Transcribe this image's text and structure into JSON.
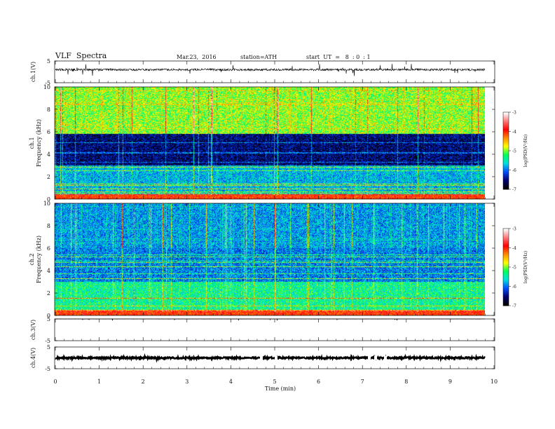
{
  "header": {
    "title": "VLF  Spectra",
    "date": "Mar.23,  2016",
    "station": "station=ATH",
    "start_ut": "start  UT  =   8  : 0  : 1"
  },
  "chart_data": [
    {
      "type": "line",
      "panel": "ch1-waveform",
      "ylabel": "ch.1(V)",
      "ylim": [
        -5,
        5
      ],
      "yticks": [
        "5",
        "-5"
      ],
      "series": [
        {
          "baseline": 1.0,
          "noise": 0.5,
          "spike_amplitude": 1.3
        }
      ],
      "colors": {
        "line": "#000000"
      }
    },
    {
      "type": "heatmap",
      "panel": "ch1-spectrogram",
      "ylabel": "Frequency  (kHz)",
      "channel_label": "ch.1",
      "ylim": [
        0,
        10
      ],
      "yticks": [
        "0",
        "2",
        "4",
        "6",
        "8",
        "10"
      ],
      "xlim": [
        0,
        9.8
      ],
      "description_levels": {
        "below_0.4kHz": -4.0,
        "0.4_to_3kHz": -5.8,
        "3_to_5.8kHz": -6.6,
        "above_5.8kHz": -5.0
      },
      "colorbar": {
        "label": "log(PSD(V²/Hz)",
        "ticks": [
          "-3",
          "-4",
          "-5",
          "-6",
          "-7"
        ],
        "range": [
          -7,
          -3
        ]
      }
    },
    {
      "type": "heatmap",
      "panel": "ch2-spectrogram",
      "ylabel": "Frequency  (kHz)",
      "channel_label": "ch.2",
      "ylim": [
        0,
        10
      ],
      "yticks": [
        "0",
        "2",
        "4",
        "6",
        "8",
        "10"
      ],
      "xlim": [
        0,
        9.8
      ],
      "description_levels": {
        "below_0.5kHz": -4.5,
        "0.5_to_3kHz": -5.4,
        "3_to_6kHz": -6.0,
        "above_6kHz": -5.9
      },
      "colorbar": {
        "label": "log(PSD(V²/Hz)",
        "ticks": [
          "-3",
          "-4",
          "-5",
          "-6",
          "-7"
        ],
        "range": [
          -7,
          -3
        ]
      }
    },
    {
      "type": "line",
      "panel": "ch3-waveform",
      "ylabel": "ch.3(V)",
      "ylim": [
        -5,
        5
      ],
      "yticks": [
        "5",
        "-5"
      ],
      "series": [
        {
          "baseline": 5.0,
          "noise": 0.1,
          "spike_amplitude": 0.5
        }
      ],
      "colors": {
        "line": "#000000"
      }
    },
    {
      "type": "line",
      "panel": "ch4-waveform",
      "ylabel": "ch.4(V)",
      "ylim": [
        -5,
        5
      ],
      "yticks": [
        "5",
        "-5"
      ],
      "series": [
        {
          "baseline": 0.0,
          "noise": 0.35,
          "spike_amplitude": 0.4
        }
      ],
      "colors": {
        "line": "#000000"
      }
    }
  ],
  "xaxis": {
    "label": "Time  (min)",
    "ticks": [
      "0",
      "1",
      "2",
      "3",
      "4",
      "5",
      "6",
      "7",
      "8",
      "9",
      "10"
    ],
    "range": [
      0,
      10
    ]
  },
  "colormap": [
    "#ffffff",
    "#ff7a7a",
    "#ff0000",
    "#ff8c00",
    "#ffff00",
    "#00ff5a",
    "#00e0e0",
    "#0050ff",
    "#000070",
    "#000000"
  ]
}
